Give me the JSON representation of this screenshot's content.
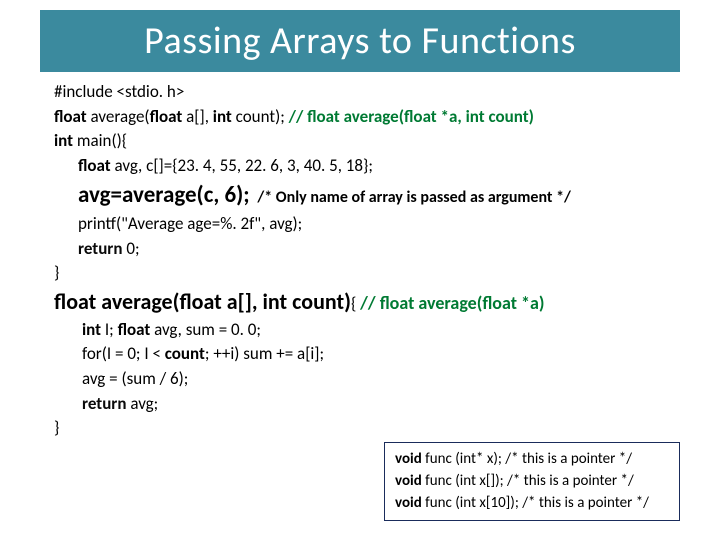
{
  "title": "Passing Arrays to Functions",
  "colors": {
    "title_bg": "#3b8a9e",
    "title_fg": "#ffffff",
    "comment_green": "#007a33",
    "box_border": "#1a2c5b"
  },
  "code": {
    "l1_include": "#include <stdio. h>",
    "l2_pre": "float",
    "l2_mid": " average(",
    "l2_float2": "float",
    "l2_arr": " a[], ",
    "l2_int": "int",
    "l2_count": " count); ",
    "l2_comment": "// float average(float  *a, int count)",
    "l3_int": "int",
    "l3_rest": " main(){",
    "l4_float": "float",
    "l4_rest": " avg, c[]={23. 4, 55, 22. 6, 3, 40. 5, 18};",
    "l5_call": "avg=average(c, 6);",
    "l5_comment": "/* Only name of array is passed as argument */",
    "l6": "printf(\"Average age=%. 2f\", avg);",
    "l7_return": "return",
    "l7_rest": " 0;",
    "l8": "}",
    "fd_float": "float",
    "fd_mid": " average(",
    "fd_float2": "float",
    "fd_arr": " a[], ",
    "fd_int": "int",
    "fd_count": " count)",
    "fd_brace": "{ ",
    "fd_comment": "// float average(float  *a)",
    "b1_int": "int",
    "b1_i": " I;  ",
    "b1_float": "float",
    "b1_rest": " avg, sum = 0. 0;",
    "b2_pre": "for(I = 0; I < ",
    "b2_count": "count",
    "b2_rest": "; ++i)  sum += a[i];",
    "b3": "avg = (sum / 6);",
    "b4_return": "return",
    "b4_rest": " avg;",
    "b5": "}"
  },
  "box": {
    "l1_kw": "void",
    "l1_rest": " func (int* x); /* this is a pointer */",
    "l2_kw": "void",
    "l2_rest": " func (int x[]); /* this is a pointer */",
    "l3_kw": "void",
    "l3_rest": " func (int x[10]); /* this is a pointer */"
  }
}
